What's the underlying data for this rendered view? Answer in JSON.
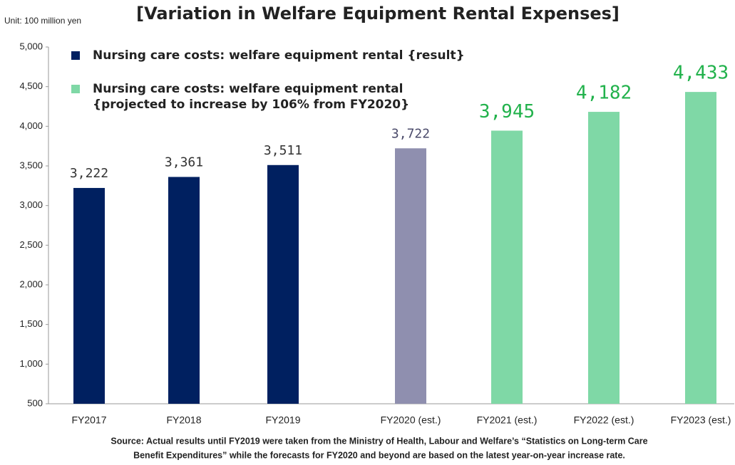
{
  "chart_data": {
    "type": "bar",
    "title": "[Variation in Welfare Equipment Rental Expenses]",
    "unit_label": "Unit: 100 million yen",
    "categories": [
      "FY2017",
      "FY2018",
      "FY2019",
      "FY2020 (est.)",
      "FY2021 (est.)",
      "FY2022 (est.)",
      "FY2023 (est.)"
    ],
    "values": [
      3222,
      3361,
      3511,
      3722,
      3945,
      4182,
      4433
    ],
    "value_labels": [
      "3,222",
      "3,361",
      "3,511",
      "3,722",
      "3,945",
      "4,182",
      "4,433"
    ],
    "colors": [
      "#002060",
      "#002060",
      "#002060",
      "#8f8faf",
      "#7fd8a6",
      "#7fd8a6",
      "#7fd8a6"
    ],
    "value_label_colors": [
      "#333333",
      "#333333",
      "#333333",
      "#4a4a6a",
      "#22b24c",
      "#22b24c",
      "#22b24c"
    ],
    "ylim": [
      500,
      5000
    ],
    "yticks": [
      500,
      {
        "value": 1000,
        "label": "1,000"
      },
      {
        "value": 1500,
        "label": "1,500"
      },
      {
        "value": 2000,
        "label": "2,000"
      },
      {
        "value": 2500,
        "label": "2,500"
      },
      {
        "value": 3000,
        "label": "3,000"
      },
      {
        "value": 3500,
        "label": "3,500"
      },
      {
        "value": 4000,
        "label": "4,000"
      },
      {
        "value": 4500,
        "label": "4,500"
      },
      {
        "value": 5000,
        "label": "5,000"
      }
    ],
    "grid": false,
    "legend": [
      {
        "name": [
          "Nursing care costs: welfare equipment rental {result}"
        ],
        "color": "#002060"
      },
      {
        "name": [
          "Nursing care costs: welfare equipment rental",
          "{projected to increase by 106% from FY2020}"
        ],
        "color": "#7fd8a6"
      }
    ],
    "note": [
      "Source: Actual results until FY2019 were taken from the Ministry of Health, Labour and Welfare’s “Statistics on Long-term Care",
      "Benefit Expenditures” while the forecasts for FY2020 and beyond are based on the latest year-on-year increase rate."
    ]
  }
}
